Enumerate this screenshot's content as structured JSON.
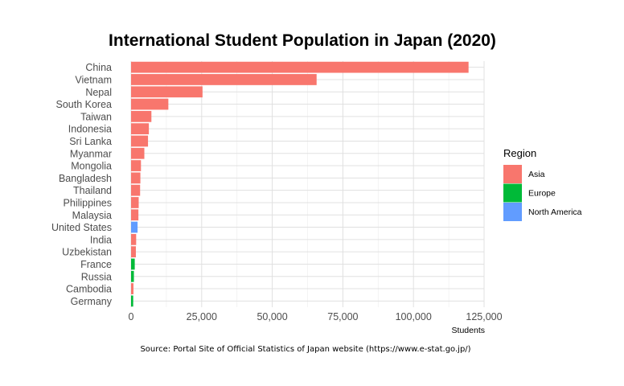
{
  "chart_data": {
    "type": "bar",
    "orientation": "horizontal",
    "title": "International Student Population in Japan (2020)",
    "xlabel": "Students",
    "ylabel": "",
    "caption": "Source: Portal Site of Official Statistics of Japan website (https://www.e-stat.go.jp/)",
    "xlim": [
      0,
      125000
    ],
    "xticks": [
      0,
      25000,
      50000,
      75000,
      100000,
      125000
    ],
    "xtick_labels": [
      "0",
      "25,000",
      "50,000",
      "75,000",
      "100,000",
      "125,000"
    ],
    "grid": true,
    "legend": {
      "title": "Region",
      "placement": "right",
      "entries": [
        {
          "name": "Asia",
          "color": "#F8766D"
        },
        {
          "name": "Europe",
          "color": "#00BA38"
        },
        {
          "name": "North America",
          "color": "#619CFF"
        }
      ]
    },
    "categories": [
      "China",
      "Vietnam",
      "Nepal",
      "South Korea",
      "Taiwan",
      "Indonesia",
      "Sri Lanka",
      "Myanmar",
      "Mongolia",
      "Bangladesh",
      "Thailand",
      "Philippines",
      "Malaysia",
      "United States",
      "India",
      "Uzbekistan",
      "France",
      "Russia",
      "Cambodia",
      "Germany"
    ],
    "values": [
      119500,
      65700,
      25300,
      13200,
      7200,
      6300,
      6000,
      4700,
      3500,
      3300,
      3200,
      2700,
      2600,
      2300,
      1800,
      1700,
      1300,
      1000,
      850,
      750
    ],
    "regions": [
      "Asia",
      "Asia",
      "Asia",
      "Asia",
      "Asia",
      "Asia",
      "Asia",
      "Asia",
      "Asia",
      "Asia",
      "Asia",
      "Asia",
      "Asia",
      "North America",
      "Asia",
      "Asia",
      "Europe",
      "Europe",
      "Asia",
      "Europe"
    ]
  }
}
